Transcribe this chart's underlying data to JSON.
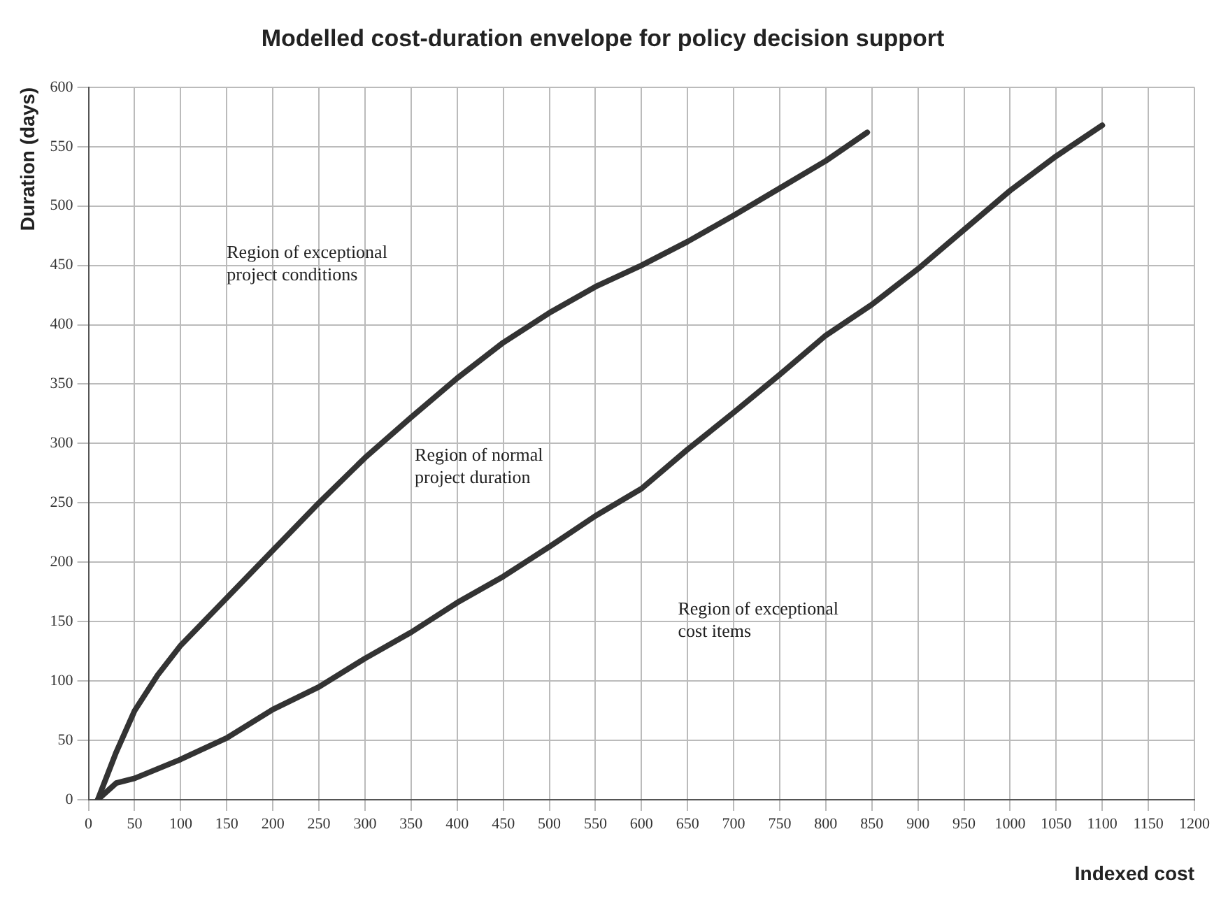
{
  "chart_data": {
    "type": "line",
    "title": "Modelled cost-duration envelope for policy decision support",
    "xlabel": "Indexed cost",
    "ylabel": "Duration (days)",
    "xlim": [
      0,
      1200
    ],
    "xticks": [
      0,
      50,
      100,
      150,
      200,
      250,
      300,
      350,
      400,
      450,
      500,
      550,
      600,
      650,
      700,
      750,
      800,
      850,
      900,
      950,
      1000,
      1050,
      1100,
      1150,
      1200
    ],
    "ylim": [
      0,
      600
    ],
    "yticks": [
      0,
      50,
      100,
      150,
      200,
      250,
      300,
      350,
      400,
      450,
      500,
      550,
      600
    ],
    "grid": true,
    "legend": false,
    "marker": "none",
    "line_style": "solid",
    "series": [
      {
        "color": "#333333",
        "x": [
          10,
          30,
          50,
          75,
          100,
          150,
          200,
          250,
          300,
          350,
          400,
          450,
          500,
          550,
          600,
          650,
          700,
          750,
          800,
          845
        ],
        "values": [
          0,
          40,
          75,
          105,
          130,
          170,
          210,
          250,
          288,
          322,
          355,
          385,
          410,
          432,
          450,
          470,
          492,
          515,
          538,
          562
        ]
      },
      {
        "color": "#333333",
        "x": [
          10,
          30,
          50,
          100,
          150,
          200,
          250,
          300,
          350,
          400,
          450,
          500,
          550,
          600,
          650,
          700,
          750,
          800,
          850,
          900,
          950,
          1000,
          1050,
          1100
        ],
        "values": [
          0,
          14,
          18,
          34,
          52,
          76,
          95,
          119,
          141,
          166,
          188,
          213,
          239,
          262,
          295,
          326,
          358,
          391,
          417,
          447,
          480,
          513,
          542,
          568
        ]
      }
    ],
    "annotations": [
      "Region of exceptional\nproject conditions",
      "Region of normal\nproject duration",
      "Region of exceptional\ncost items"
    ]
  }
}
